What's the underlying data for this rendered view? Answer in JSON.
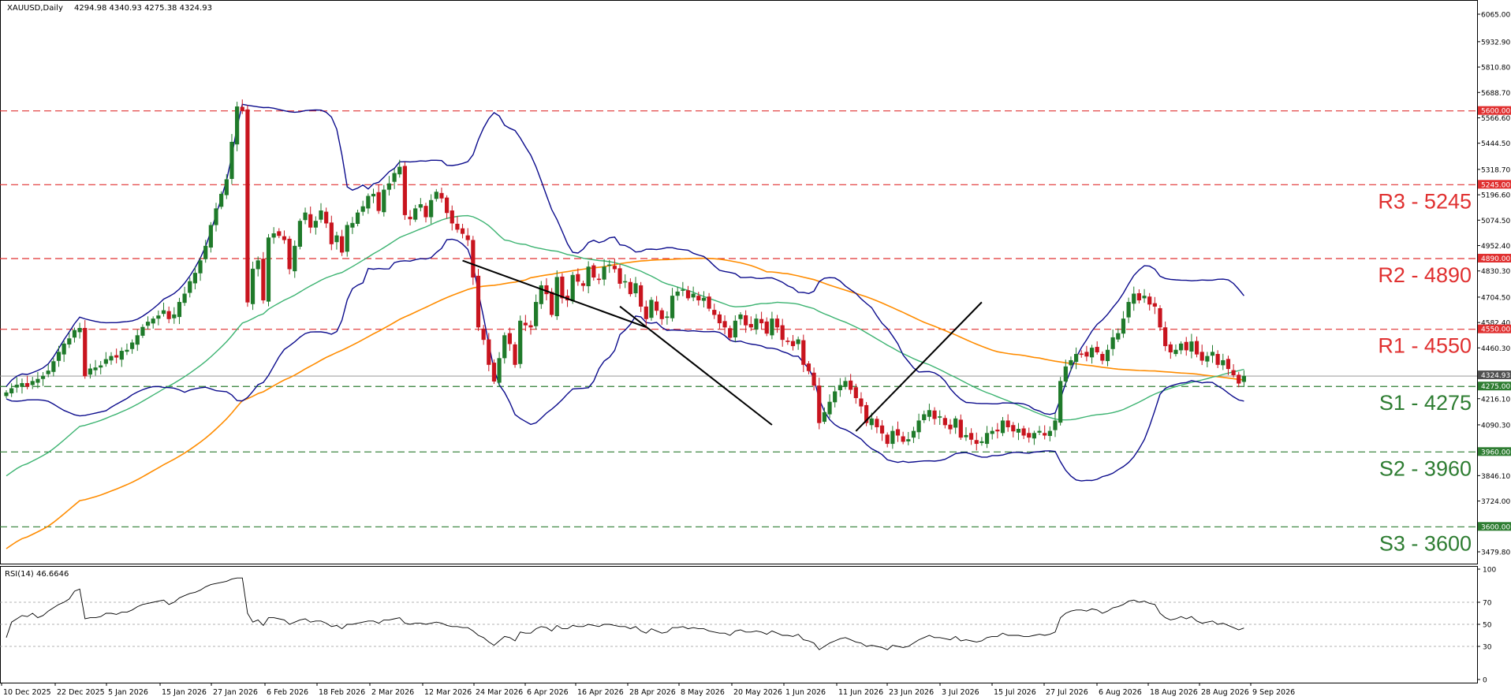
{
  "header": {
    "symbol": "XAUUSD,Daily",
    "ohlc": "4294.98 4340.93 4275.38 4324.93",
    "rsi_label": "RSI(14) 46.6646"
  },
  "colors": {
    "bull": "#1f7a2a",
    "bear": "#c8141e",
    "bollinger": "#0b0b8c",
    "ma_green": "#3cb371",
    "ma_orange": "#ff8c00",
    "resistance": "#e03030",
    "support": "#2e7d32",
    "trend": "#000000",
    "rsi": "#000000"
  },
  "chart_data": [
    {
      "type": "candlestick",
      "ylim": [
        3420,
        6110
      ],
      "price_ticks": [
        "6065.00",
        "5932.90",
        "5810.80",
        "5688.70",
        "5566.60",
        "5444.50",
        "5318.70",
        "5196.60",
        "5074.50",
        "4952.40",
        "4830.30",
        "4704.50",
        "4582.40",
        "4460.30",
        "4338.20",
        "4216.10",
        "4090.30",
        "3968.20",
        "3846.10",
        "3724.00",
        "3601.90",
        "3479.80"
      ],
      "date_ticks": [
        "10 Dec 2025",
        "22 Dec 2025",
        "5 Jan 2026",
        "15 Jan 2026",
        "27 Jan 2026",
        "6 Feb 2026",
        "18 Feb 2026",
        "2 Mar 2026",
        "12 Mar 2026",
        "24 Mar 2026",
        "6 Apr 2026",
        "16 Apr 2026",
        "28 Apr 2026",
        "8 May 2026",
        "20 May 2026",
        "1 Jun 2026",
        "11 Jun 2026",
        "23 Jun 2026",
        "3 Jul 2026",
        "15 Jul 2026",
        "27 Jul 2026",
        "6 Aug 2026",
        "18 Aug 2026",
        "28 Aug 2026",
        "9 Sep 2026"
      ],
      "levels": [
        {
          "label": "",
          "tag": "5600.00",
          "value": 5600,
          "kind": "resistance"
        },
        {
          "label": "R3 - 5245",
          "tag": "5245.00",
          "value": 5245,
          "kind": "resistance"
        },
        {
          "label": "R2 - 4890",
          "tag": "4890.00",
          "value": 4890,
          "kind": "resistance"
        },
        {
          "label": "R1 - 4550",
          "tag": "4550.00",
          "value": 4550,
          "kind": "resistance"
        },
        {
          "label": "S1 - 4275",
          "tag": "4275.00",
          "value": 4275,
          "kind": "support"
        },
        {
          "label": "S2 - 3960",
          "tag": "3960.00",
          "value": 3960,
          "kind": "support"
        },
        {
          "label": "S3 - 3600",
          "tag": "3600.00",
          "value": 3600,
          "kind": "support"
        }
      ],
      "current_price": {
        "tag": "4324.93",
        "value": 4324.93
      },
      "closes": [
        4245,
        4265,
        4282,
        4290,
        4275,
        4300,
        4310,
        4325,
        4350,
        4395,
        4440,
        4480,
        4505,
        4545,
        4555,
        4325,
        4360,
        4365,
        4375,
        4405,
        4420,
        4415,
        4445,
        4450,
        4485,
        4520,
        4560,
        4585,
        4600,
        4615,
        4640,
        4600,
        4620,
        4680,
        4720,
        4780,
        4820,
        4880,
        4950,
        5050,
        5130,
        5200,
        5270,
        5450,
        5620,
        5600,
        4680,
        4840,
        4880,
        4690,
        4990,
        5010,
        5000,
        4980,
        4840,
        4950,
        5070,
        5110,
        5040,
        5070,
        5120,
        5060,
        4960,
        5000,
        4920,
        5050,
        5060,
        5110,
        5140,
        5190,
        5200,
        5120,
        5220,
        5250,
        5300,
        5330,
        5100,
        5080,
        5130,
        5150,
        5090,
        5170,
        5210,
        5180,
        5110,
        5060,
        5030,
        5010,
        4980,
        4800,
        4560,
        4500,
        4380,
        4300,
        4410,
        4520,
        4480,
        4380,
        4590,
        4570,
        4560,
        4680,
        4760,
        4720,
        4620,
        4800,
        4700,
        4690,
        4810,
        4780,
        4760,
        4850,
        4800,
        4790,
        4850,
        4860,
        4840,
        4770,
        4780,
        4720,
        4770,
        4660,
        4600,
        4690,
        4640,
        4600,
        4610,
        4710,
        4730,
        4740,
        4700,
        4720,
        4690,
        4700,
        4650,
        4620,
        4580,
        4560,
        4510,
        4590,
        4620,
        4570,
        4560,
        4600,
        4580,
        4530,
        4600,
        4560,
        4500,
        4490,
        4470,
        4500,
        4380,
        4350,
        4280,
        4100,
        4150,
        4200,
        4250,
        4280,
        4300,
        4260,
        4220,
        4180,
        4100,
        4120,
        4080,
        4050,
        4000,
        4060,
        4040,
        4010,
        4020,
        4060,
        4110,
        4140,
        4160,
        4120,
        4130,
        4090,
        4070,
        4120,
        4030,
        4040,
        4020,
        4000,
        4010,
        4050,
        4060,
        4060,
        4110,
        4080,
        4060,
        4070,
        4040,
        4030,
        4050,
        4060,
        4040,
        4060,
        4110,
        4300,
        4370,
        4400,
        4430,
        4430,
        4420,
        4460,
        4440,
        4400,
        4450,
        4510,
        4530,
        4600,
        4680,
        4720,
        4690,
        4710,
        4670,
        4660,
        4560,
        4470,
        4440,
        4450,
        4480,
        4450,
        4490,
        4430,
        4400,
        4420,
        4440,
        4380,
        4400,
        4360,
        4330,
        4290,
        4324.93
      ],
      "rsi_ticks": [
        "100",
        "70",
        "50",
        "30",
        "0"
      ],
      "rsi": [
        38,
        52,
        55,
        58,
        57,
        60,
        56,
        58,
        62,
        65,
        68,
        70,
        73,
        80,
        82,
        55,
        56,
        56,
        57,
        60,
        60,
        59,
        61,
        61,
        63,
        66,
        68,
        69,
        70,
        71,
        72,
        68,
        70,
        74,
        76,
        78,
        79,
        81,
        84,
        86,
        87,
        88,
        89,
        91,
        92,
        92,
        60,
        52,
        54,
        49,
        56,
        56,
        55,
        54,
        50,
        52,
        54,
        55,
        52,
        53,
        53,
        51,
        48,
        49,
        46,
        50,
        50,
        51,
        52,
        53,
        53,
        51,
        54,
        54,
        55,
        56,
        51,
        50,
        51,
        51,
        50,
        51,
        52,
        51,
        49,
        48,
        48,
        47,
        47,
        44,
        40,
        38,
        34,
        31,
        35,
        39,
        38,
        35,
        43,
        42,
        42,
        46,
        48,
        47,
        44,
        49,
        46,
        46,
        49,
        48,
        48,
        50,
        49,
        48,
        50,
        50,
        49,
        48,
        48,
        46,
        48,
        44,
        42,
        46,
        44,
        42,
        43,
        47,
        47,
        48,
        46,
        47,
        46,
        46,
        44,
        43,
        42,
        42,
        40,
        44,
        45,
        43,
        43,
        44,
        43,
        41,
        44,
        42,
        40,
        40,
        39,
        41,
        36,
        35,
        33,
        27,
        30,
        33,
        35,
        37,
        38,
        36,
        34,
        33,
        30,
        31,
        30,
        29,
        27,
        31,
        30,
        29,
        30,
        33,
        36,
        38,
        40,
        38,
        38,
        37,
        36,
        39,
        35,
        36,
        35,
        34,
        35,
        38,
        39,
        39,
        42,
        40,
        40,
        40,
        39,
        39,
        40,
        41,
        40,
        41,
        43,
        56,
        60,
        62,
        63,
        63,
        62,
        64,
        63,
        60,
        62,
        65,
        66,
        68,
        71,
        72,
        70,
        71,
        69,
        68,
        60,
        56,
        54,
        55,
        57,
        55,
        57,
        53,
        51,
        52,
        53,
        50,
        51,
        49,
        47,
        45,
        46.66
      ]
    }
  ]
}
